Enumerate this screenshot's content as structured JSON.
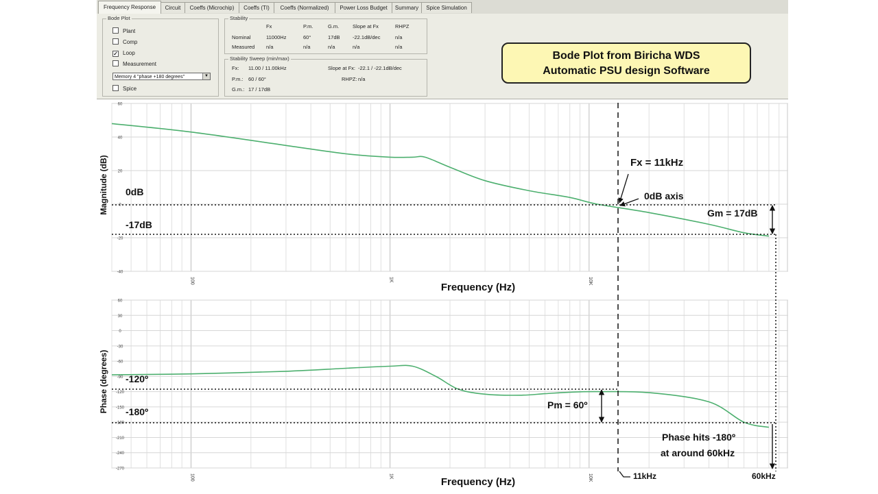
{
  "tabs": [
    "Frequency Response",
    "Circuit",
    "Coeffs (Microchip)",
    "Coeffs (TI)",
    "Coeffs (Normalized)",
    "Power Loss Budget",
    "Summary",
    "Spice Simulation"
  ],
  "bode_plot": {
    "title": "Bode Plot",
    "plant": "Plant",
    "comp": "Comp",
    "loop": "Loop",
    "measurement": "Measurement",
    "memory_select": "Memory 4 \"phase +180 degrees\"",
    "spice": "Spice"
  },
  "stability": {
    "title": "Stability",
    "headers": [
      "Fx",
      "P.m.",
      "G.m.",
      "Slope at Fx",
      "RHPZ"
    ],
    "rows": [
      {
        "label": "Nominal",
        "values": [
          "11000Hz",
          "60°",
          "17dB",
          "-22.1dB/dec",
          "n/a"
        ]
      },
      {
        "label": "Measured",
        "values": [
          "n/a",
          "n/a",
          "n/a",
          "n/a",
          "n/a"
        ]
      }
    ]
  },
  "sweep": {
    "title": "Stability Sweep (min/max)",
    "fx_label": "Fx:",
    "fx_value": "11.00 / 11.00kHz",
    "slope_label": "Slope at Fx:",
    "slope_value": "-22.1 / -22.1dB/dec",
    "pm_label": "P.m.:",
    "pm_value": "60 / 60°",
    "rhpz_label": "RHPZ:",
    "rhpz_value": "n/a",
    "gm_label": "G.m.:",
    "gm_value": "17 / 17dB"
  },
  "callout": {
    "line1": "Bode Plot from Biricha WDS",
    "line2": "Automatic PSU design Software"
  },
  "annotations": {
    "zero_db": "0dB",
    "minus17": "-17dB",
    "fx": "Fx = 11kHz",
    "zero_db_axis": "0dB axis",
    "gm": "Gm = 17dB",
    "minus120": "-120º",
    "minus180": "-180º",
    "pm": "Pm = 60º",
    "phase_hits_1": "Phase hits -180º",
    "phase_hits_2": "at around 60kHz",
    "f11k": "11kHz",
    "f60k": "60kHz"
  },
  "colors": {
    "trace": "#4caf6e",
    "callout_fill": "#fdf7b4",
    "grid": "#d6d6d6"
  },
  "chart_data": [
    {
      "type": "line",
      "xlabel": "Frequency (Hz)",
      "ylabel": "Magnitude (dB)",
      "x_scale": "log",
      "xlim": [
        40,
        100000
      ],
      "x_ticks": [
        100,
        1000,
        10000
      ],
      "x_tick_labels": [
        "100",
        "1K",
        "10K"
      ],
      "ylim": [
        -40,
        60
      ],
      "y_ticks": [
        60,
        40,
        20,
        0,
        -20,
        -40
      ],
      "series": [
        {
          "x": [
            40,
            100,
            300,
            600,
            1000,
            1300,
            1500,
            2000,
            3000,
            5000,
            8000,
            11000,
            20000,
            40000,
            60000,
            80000
          ],
          "y": [
            48,
            43,
            35,
            30,
            28,
            28,
            28,
            22,
            14,
            8,
            4,
            0,
            -5,
            -12,
            -17,
            -19
          ]
        }
      ]
    },
    {
      "type": "line",
      "xlabel": "Frequency (Hz)",
      "ylabel": "Phase (degrees)",
      "x_scale": "log",
      "xlim": [
        40,
        100000
      ],
      "x_ticks": [
        100,
        1000,
        10000
      ],
      "x_tick_labels": [
        "100",
        "1K",
        "10K"
      ],
      "ylim": [
        -270,
        60
      ],
      "y_ticks": [
        60,
        30,
        0,
        -30,
        -60,
        -90,
        -120,
        -150,
        -180,
        -210,
        -240,
        -270
      ],
      "series": [
        {
          "x": [
            40,
            100,
            300,
            600,
            1000,
            1300,
            1700,
            2200,
            3000,
            4500,
            6000,
            8000,
            11000,
            20000,
            40000,
            60000,
            80000
          ],
          "y": [
            -87,
            -85,
            -80,
            -74,
            -70,
            -70,
            -90,
            -115,
            -125,
            -127,
            -124,
            -121,
            -120,
            -122,
            -140,
            -180,
            -190
          ]
        }
      ]
    }
  ]
}
